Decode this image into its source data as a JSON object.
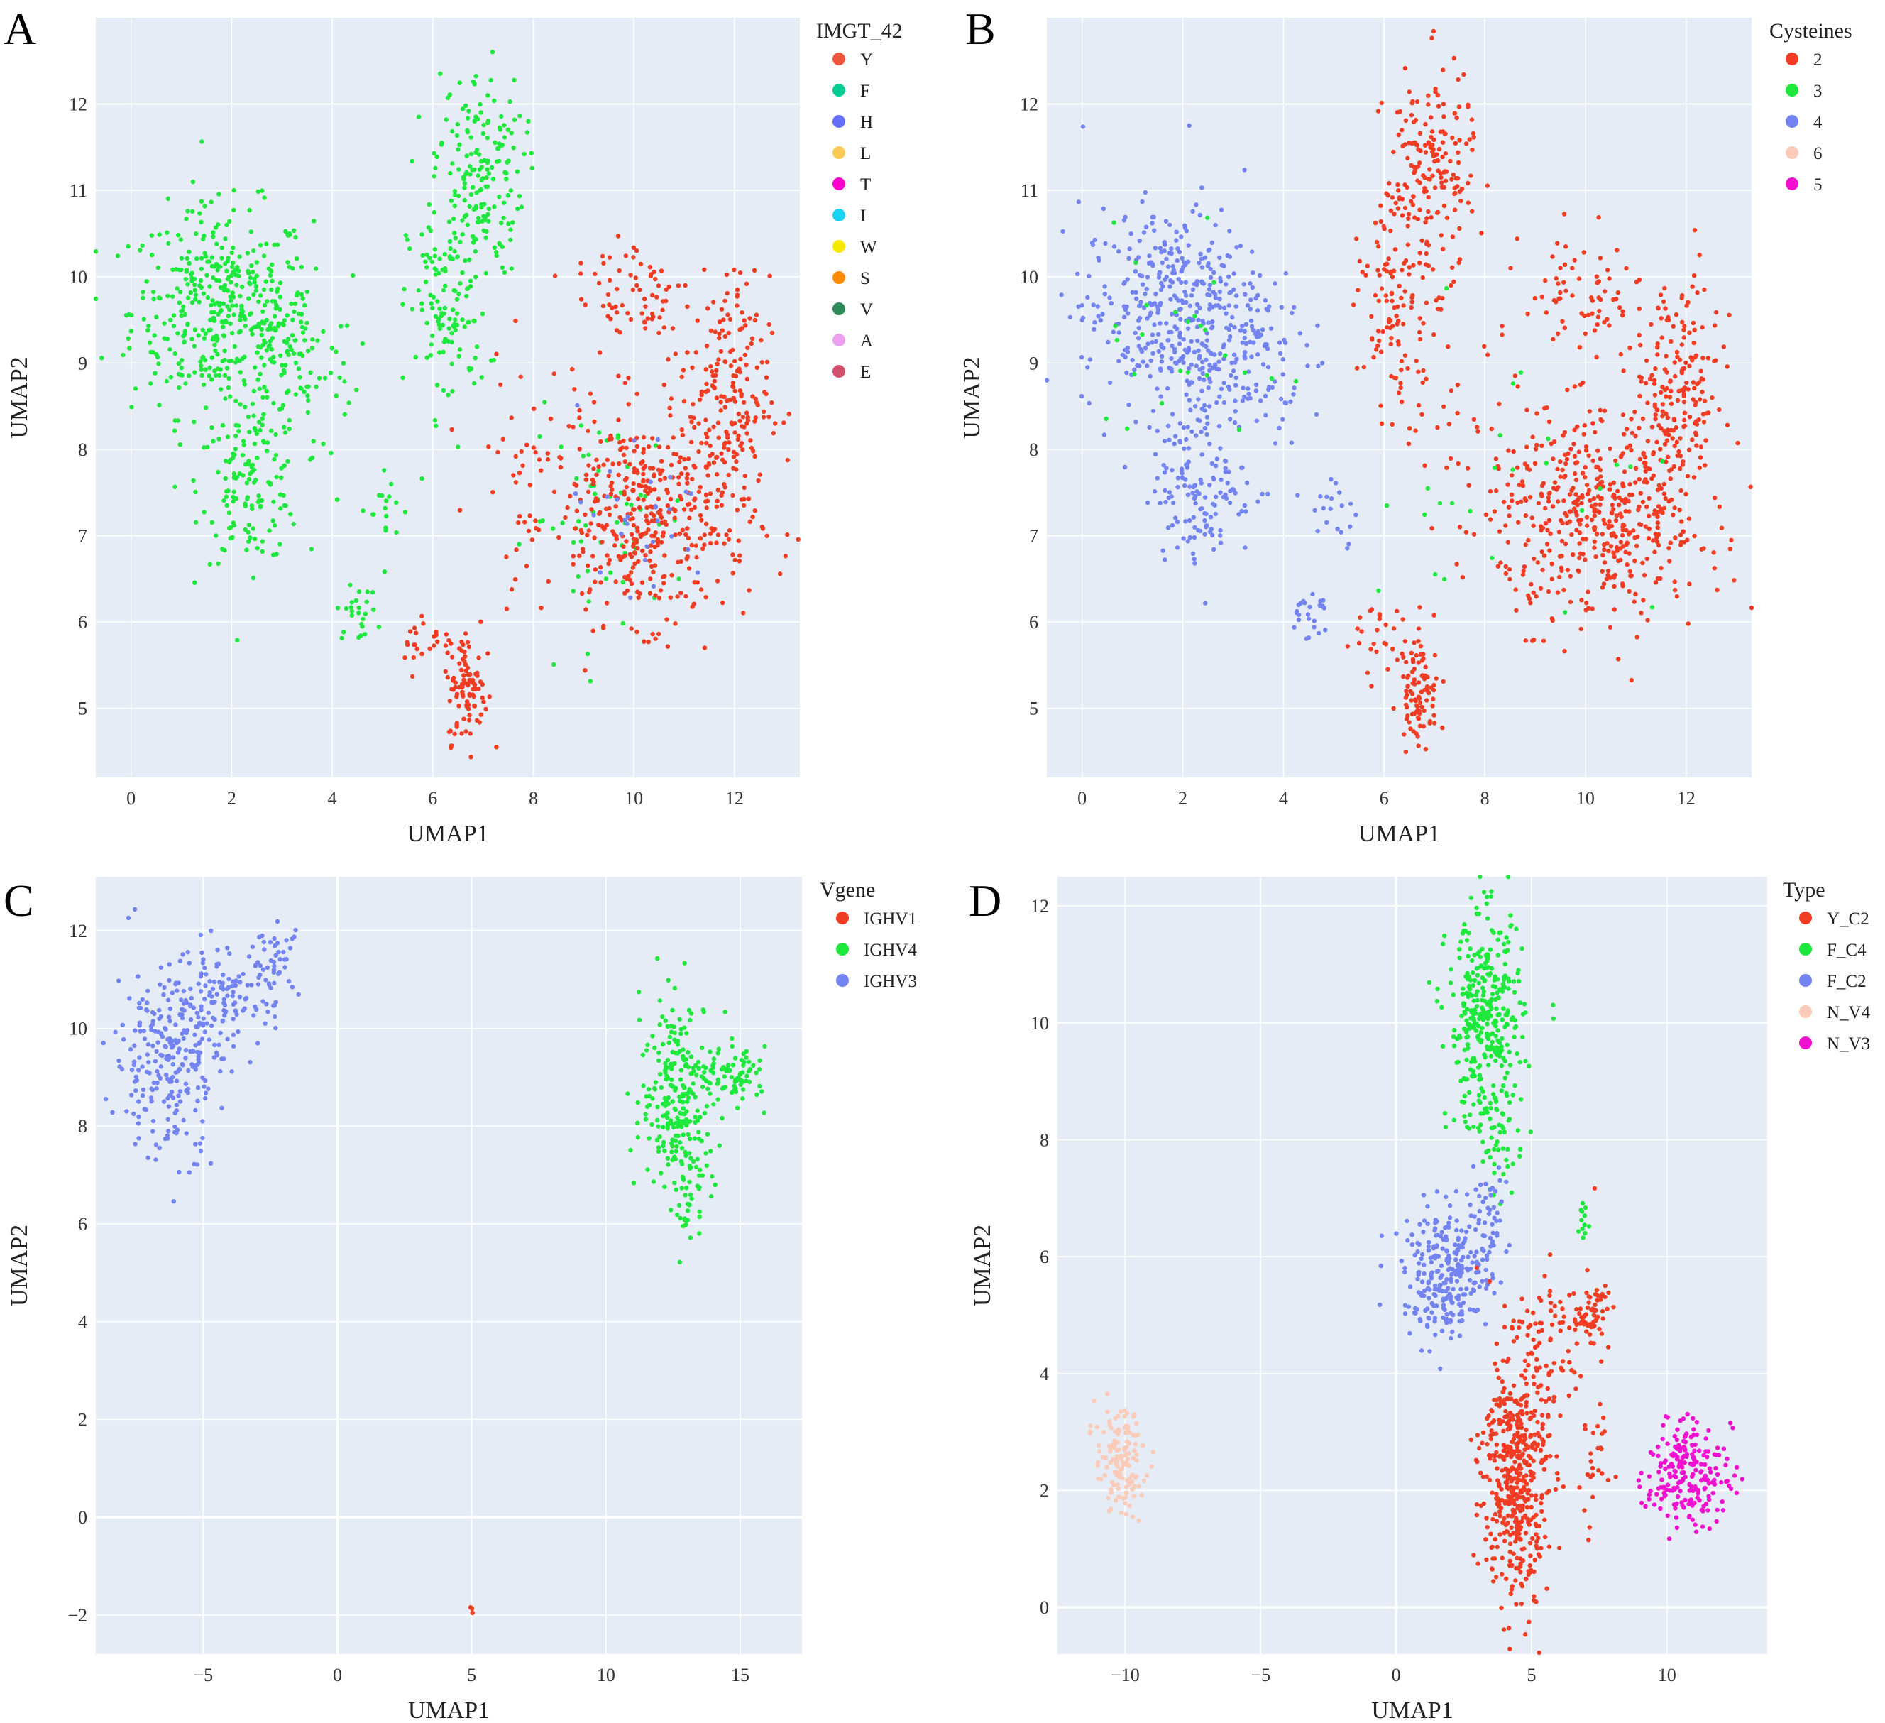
{
  "figure": {
    "panels": [
      "A",
      "B",
      "C",
      "D"
    ]
  },
  "chart_data": [
    {
      "id": "A",
      "panel_label": "A",
      "type": "scatter",
      "xlabel": "UMAP1",
      "ylabel": "UMAP2",
      "xlim": [
        -0.7,
        13.3
      ],
      "ylim": [
        4.2,
        13.0
      ],
      "xticks": [
        0,
        2,
        4,
        6,
        8,
        10,
        12
      ],
      "yticks": [
        5,
        6,
        7,
        8,
        9,
        10,
        11,
        12
      ],
      "zero_lines": false,
      "legend_title": "IMGT_42",
      "legend": [
        {
          "label": "Y",
          "color": "#EF553B"
        },
        {
          "label": "F",
          "color": "#00CC96"
        },
        {
          "label": "H",
          "color": "#636EFA"
        },
        {
          "label": "L",
          "color": "#FECB52"
        },
        {
          "label": "T",
          "color": "#FF00CC"
        },
        {
          "label": "I",
          "color": "#19D3F3"
        },
        {
          "label": "W",
          "color": "#F5E900"
        },
        {
          "label": "S",
          "color": "#FF8C00"
        },
        {
          "label": "V",
          "color": "#2E8B57"
        },
        {
          "label": "A",
          "color": "#EBA0F0"
        },
        {
          "label": "E",
          "color": "#D0506E"
        }
      ],
      "series": [
        {
          "name": "F",
          "color": "#1EE83C",
          "clusters": [
            {
              "cx": 1.8,
              "cy": 9.6,
              "sx": 0.9,
              "sy": 0.6,
              "n": 420
            },
            {
              "cx": 2.4,
              "cy": 7.6,
              "sx": 0.5,
              "sy": 0.45,
              "n": 140
            },
            {
              "cx": 3.2,
              "cy": 9.0,
              "sx": 0.6,
              "sy": 0.5,
              "n": 90
            },
            {
              "cx": 6.9,
              "cy": 11.2,
              "sx": 0.45,
              "sy": 0.6,
              "n": 180
            },
            {
              "cx": 6.3,
              "cy": 9.6,
              "sx": 0.4,
              "sy": 0.6,
              "n": 120
            },
            {
              "cx": 4.5,
              "cy": 6.1,
              "sx": 0.2,
              "sy": 0.15,
              "n": 25
            },
            {
              "cx": 5.0,
              "cy": 7.3,
              "sx": 0.3,
              "sy": 0.3,
              "n": 20
            },
            {
              "cx": 9.5,
              "cy": 7.2,
              "sx": 0.8,
              "sy": 0.6,
              "n": 60
            }
          ]
        },
        {
          "name": "Y",
          "color": "#F03C22",
          "clusters": [
            {
              "cx": 10.3,
              "cy": 7.2,
              "sx": 1.0,
              "sy": 0.6,
              "n": 420
            },
            {
              "cx": 11.8,
              "cy": 8.6,
              "sx": 0.45,
              "sy": 0.7,
              "n": 200
            },
            {
              "cx": 10.0,
              "cy": 9.8,
              "sx": 0.6,
              "sy": 0.4,
              "n": 70
            },
            {
              "cx": 6.7,
              "cy": 5.2,
              "sx": 0.2,
              "sy": 0.3,
              "n": 90
            },
            {
              "cx": 6.0,
              "cy": 5.8,
              "sx": 0.4,
              "sy": 0.2,
              "n": 30
            },
            {
              "cx": 8.0,
              "cy": 8.0,
              "sx": 0.7,
              "sy": 0.6,
              "n": 40
            }
          ]
        },
        {
          "name": "H",
          "color": "#7383F0",
          "clusters": [
            {
              "cx": 10.0,
              "cy": 7.2,
              "sx": 0.8,
              "sy": 0.6,
              "n": 30
            }
          ]
        }
      ]
    },
    {
      "id": "B",
      "panel_label": "B",
      "type": "scatter",
      "xlabel": "UMAP1",
      "ylabel": "UMAP2",
      "xlim": [
        -0.7,
        13.3
      ],
      "ylim": [
        4.2,
        13.0
      ],
      "xticks": [
        0,
        2,
        4,
        6,
        8,
        10,
        12
      ],
      "yticks": [
        5,
        6,
        7,
        8,
        9,
        10,
        11,
        12
      ],
      "zero_lines": false,
      "legend_title": "Cysteines",
      "legend": [
        {
          "label": "2",
          "color": "#F03C22"
        },
        {
          "label": "3",
          "color": "#1EE83C"
        },
        {
          "label": "4",
          "color": "#7383F0"
        },
        {
          "label": "6",
          "color": "#F9CBB8"
        },
        {
          "label": "5",
          "color": "#F010D0"
        }
      ],
      "series": [
        {
          "name": "4",
          "color": "#7383F0",
          "clusters": [
            {
              "cx": 1.8,
              "cy": 9.6,
              "sx": 0.9,
              "sy": 0.6,
              "n": 420
            },
            {
              "cx": 2.4,
              "cy": 7.6,
              "sx": 0.5,
              "sy": 0.45,
              "n": 140
            },
            {
              "cx": 3.2,
              "cy": 9.0,
              "sx": 0.6,
              "sy": 0.5,
              "n": 90
            },
            {
              "cx": 4.5,
              "cy": 6.1,
              "sx": 0.2,
              "sy": 0.15,
              "n": 25
            },
            {
              "cx": 5.0,
              "cy": 7.3,
              "sx": 0.3,
              "sy": 0.3,
              "n": 20
            }
          ]
        },
        {
          "name": "2",
          "color": "#F03C22",
          "clusters": [
            {
              "cx": 10.3,
              "cy": 7.2,
              "sx": 1.0,
              "sy": 0.6,
              "n": 460
            },
            {
              "cx": 11.8,
              "cy": 8.6,
              "sx": 0.45,
              "sy": 0.7,
              "n": 200
            },
            {
              "cx": 10.0,
              "cy": 9.8,
              "sx": 0.6,
              "sy": 0.4,
              "n": 70
            },
            {
              "cx": 6.9,
              "cy": 11.2,
              "sx": 0.45,
              "sy": 0.6,
              "n": 180
            },
            {
              "cx": 6.3,
              "cy": 9.6,
              "sx": 0.4,
              "sy": 0.6,
              "n": 120
            },
            {
              "cx": 6.7,
              "cy": 5.2,
              "sx": 0.2,
              "sy": 0.3,
              "n": 90
            },
            {
              "cx": 6.0,
              "cy": 5.8,
              "sx": 0.4,
              "sy": 0.2,
              "n": 30
            },
            {
              "cx": 8.0,
              "cy": 8.0,
              "sx": 0.7,
              "sy": 0.6,
              "n": 40
            }
          ]
        },
        {
          "name": "3",
          "color": "#1EE83C",
          "clusters": [
            {
              "cx": 2.0,
              "cy": 9.4,
              "sx": 1.0,
              "sy": 0.7,
              "n": 25
            },
            {
              "cx": 8.5,
              "cy": 7.5,
              "sx": 1.5,
              "sy": 1.0,
              "n": 25
            }
          ]
        }
      ]
    },
    {
      "id": "C",
      "panel_label": "C",
      "type": "scatter",
      "xlabel": "UMAP1",
      "ylabel": "UMAP2",
      "xlim": [
        -9.0,
        17.3
      ],
      "ylim": [
        -2.8,
        13.1
      ],
      "xticks": [
        -5,
        0,
        5,
        10,
        15
      ],
      "yticks": [
        -2,
        0,
        2,
        4,
        6,
        8,
        10,
        12
      ],
      "zero_lines": true,
      "legend_title": "Vgene",
      "legend": [
        {
          "label": "IGHV1",
          "color": "#F03C22"
        },
        {
          "label": "IGHV4",
          "color": "#1EE83C"
        },
        {
          "label": "IGHV3",
          "color": "#7383F0"
        }
      ],
      "series": [
        {
          "name": "IGHV3",
          "color": "#7383F0",
          "clusters": [
            {
              "cx": -6.3,
              "cy": 9.4,
              "sx": 1.0,
              "sy": 1.0,
              "n": 260
            },
            {
              "cx": -4.2,
              "cy": 10.6,
              "sx": 0.9,
              "sy": 0.5,
              "n": 110
            },
            {
              "cx": -2.2,
              "cy": 11.4,
              "sx": 0.4,
              "sy": 0.35,
              "n": 40
            }
          ]
        },
        {
          "name": "IGHV4",
          "color": "#1EE83C",
          "clusters": [
            {
              "cx": 12.7,
              "cy": 8.6,
              "sx": 0.7,
              "sy": 1.0,
              "n": 250
            },
            {
              "cx": 14.8,
              "cy": 9.0,
              "sx": 0.6,
              "sy": 0.3,
              "n": 80
            },
            {
              "cx": 13.1,
              "cy": 6.6,
              "sx": 0.3,
              "sy": 0.5,
              "n": 30
            }
          ]
        },
        {
          "name": "IGHV1",
          "color": "#F03C22",
          "clusters": [
            {
              "cx": 5.0,
              "cy": -1.9,
              "sx": 0.04,
              "sy": 0.03,
              "n": 3
            }
          ]
        }
      ]
    },
    {
      "id": "D",
      "panel_label": "D",
      "type": "scatter",
      "xlabel": "UMAP1",
      "ylabel": "UMAP2",
      "xlim": [
        -12.5,
        13.7
      ],
      "ylim": [
        -0.8,
        12.5
      ],
      "xticks": [
        -10,
        -5,
        0,
        5,
        10
      ],
      "yticks": [
        0,
        2,
        4,
        6,
        8,
        10,
        12
      ],
      "zero_lines": true,
      "legend_title": "Type",
      "legend": [
        {
          "label": "Y_C2",
          "color": "#F03C22"
        },
        {
          "label": "F_C4",
          "color": "#1EE83C"
        },
        {
          "label": "F_C2",
          "color": "#7383F0"
        },
        {
          "label": "N_V4",
          "color": "#F9CBB8"
        },
        {
          "label": "N_V3",
          "color": "#F010D0"
        }
      ],
      "series": [
        {
          "name": "F_C4",
          "color": "#1EE83C",
          "clusters": [
            {
              "cx": 3.3,
              "cy": 10.0,
              "sx": 0.7,
              "sy": 0.9,
              "n": 360
            },
            {
              "cx": 3.8,
              "cy": 8.0,
              "sx": 0.35,
              "sy": 0.5,
              "n": 40
            },
            {
              "cx": 6.9,
              "cy": 6.6,
              "sx": 0.15,
              "sy": 0.2,
              "n": 12
            }
          ]
        },
        {
          "name": "F_C2",
          "color": "#7383F0",
          "clusters": [
            {
              "cx": 1.9,
              "cy": 5.7,
              "sx": 0.8,
              "sy": 0.55,
              "n": 260
            },
            {
              "cx": 3.3,
              "cy": 6.6,
              "sx": 0.4,
              "sy": 0.4,
              "n": 50
            }
          ]
        },
        {
          "name": "Y_C2",
          "color": "#F03C22",
          "clusters": [
            {
              "cx": 4.4,
              "cy": 2.3,
              "sx": 0.6,
              "sy": 1.1,
              "n": 480
            },
            {
              "cx": 7.2,
              "cy": 5.0,
              "sx": 0.35,
              "sy": 0.3,
              "n": 60
            },
            {
              "cx": 5.8,
              "cy": 4.6,
              "sx": 0.8,
              "sy": 0.6,
              "n": 70
            },
            {
              "cx": 7.3,
              "cy": 2.3,
              "sx": 0.4,
              "sy": 0.6,
              "n": 25
            }
          ]
        },
        {
          "name": "N_V4",
          "color": "#F9CBB8",
          "clusters": [
            {
              "cx": -10.2,
              "cy": 2.5,
              "sx": 0.45,
              "sy": 0.45,
              "n": 140
            }
          ]
        },
        {
          "name": "N_V3",
          "color": "#F010D0",
          "clusters": [
            {
              "cx": 10.8,
              "cy": 2.2,
              "sx": 0.8,
              "sy": 0.4,
              "n": 170
            },
            {
              "cx": 10.5,
              "cy": 2.8,
              "sx": 0.35,
              "sy": 0.3,
              "n": 40
            }
          ]
        }
      ]
    }
  ]
}
